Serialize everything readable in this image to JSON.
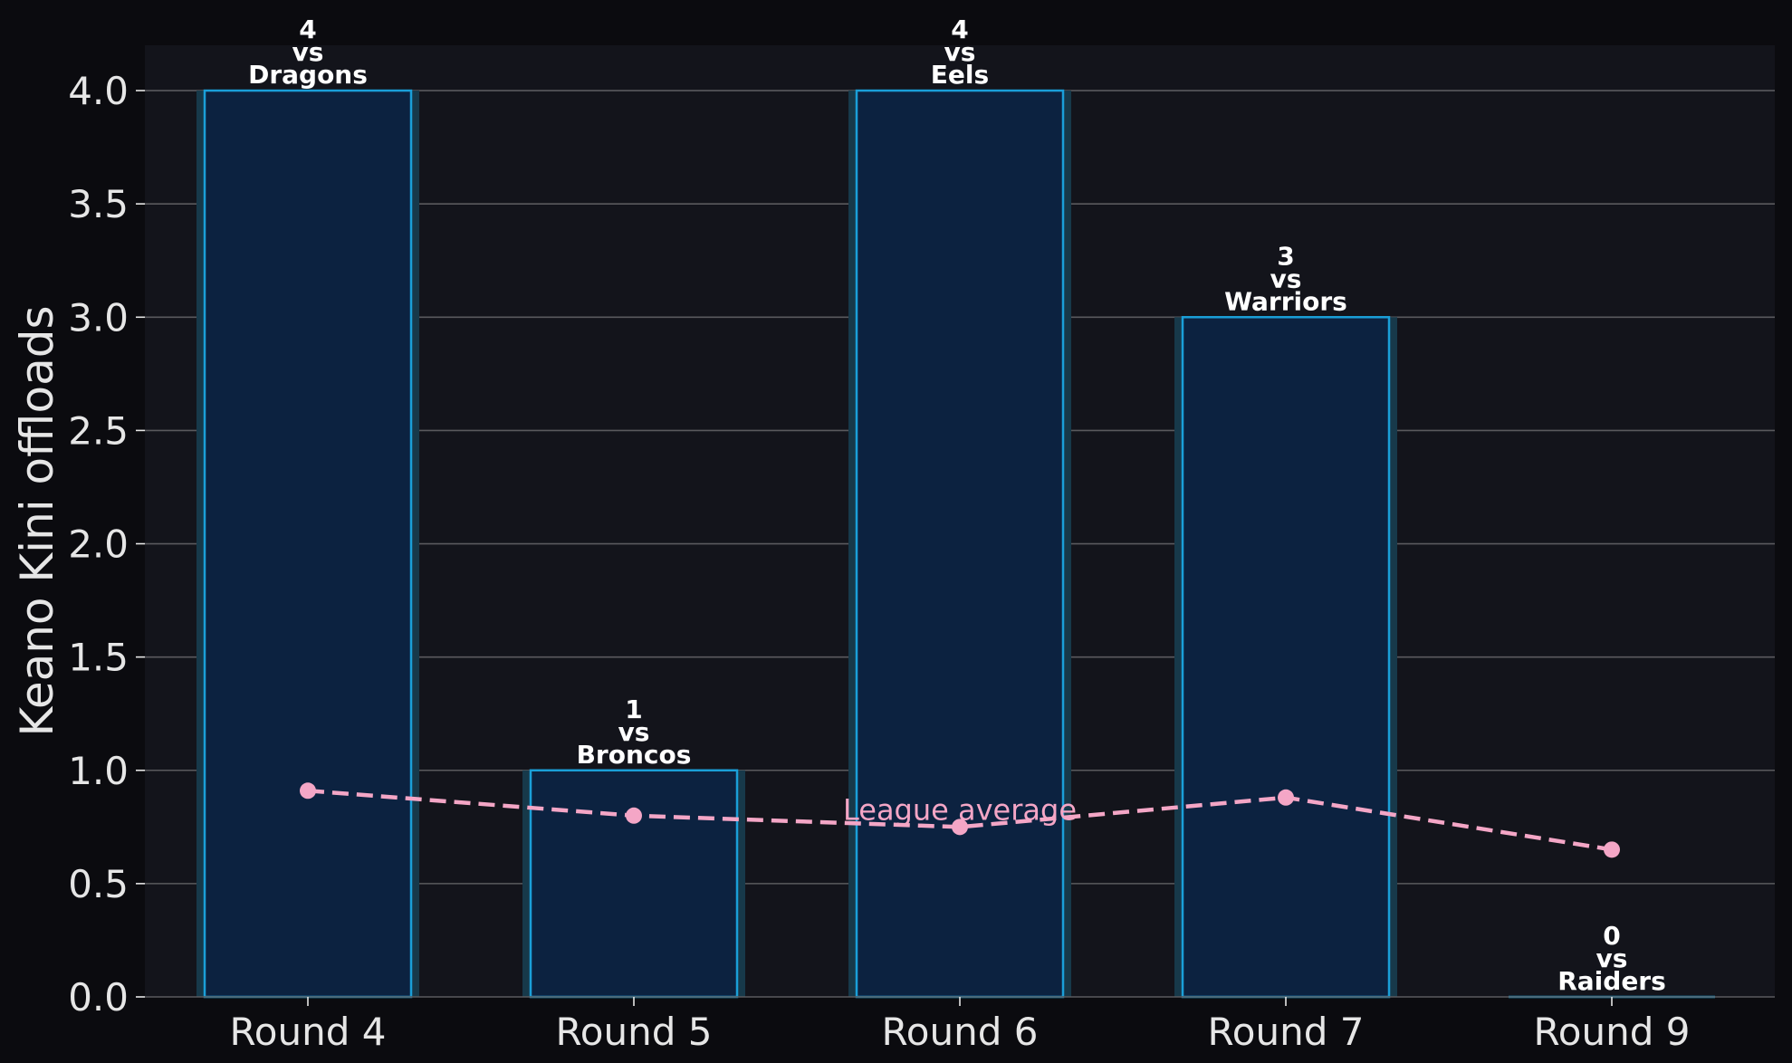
{
  "chart_data": {
    "type": "bar",
    "categories": [
      "Round 4",
      "Round 5",
      "Round 6",
      "Round 7",
      "Round 9"
    ],
    "series": [
      {
        "values": [
          4,
          1,
          4,
          3,
          0
        ]
      },
      {
        "name": "League average",
        "type": "line",
        "values": [
          0.91,
          0.8,
          0.75,
          0.88,
          0.65
        ]
      }
    ],
    "bar_labels": [
      [
        "4",
        "vs",
        "Dragons"
      ],
      [
        "1",
        "vs",
        "Broncos"
      ],
      [
        "4",
        "vs",
        "Eels"
      ],
      [
        "3",
        "vs",
        "Warriors"
      ],
      [
        "0",
        "vs",
        "Raiders"
      ]
    ],
    "ylabel": "Keano Kini offloads",
    "xlabel": "",
    "ylim": [
      0,
      4.2
    ],
    "yticks": [
      "0.0",
      "0.5",
      "1.0",
      "1.5",
      "2.0",
      "2.5",
      "3.0",
      "3.5",
      "4.0"
    ],
    "grid": "horizontal",
    "colors": {
      "figure_bg": "#0b0b0f",
      "plot_bg": "#13141b",
      "bar_fill": "#0c2240",
      "bar_edge": "#1a9fd8",
      "bar_glow": "#17394a",
      "line": "#f4a6c6",
      "grid": "#5a5a5e",
      "text": "#e6e6e6",
      "bar_label": "#ffffff"
    }
  }
}
